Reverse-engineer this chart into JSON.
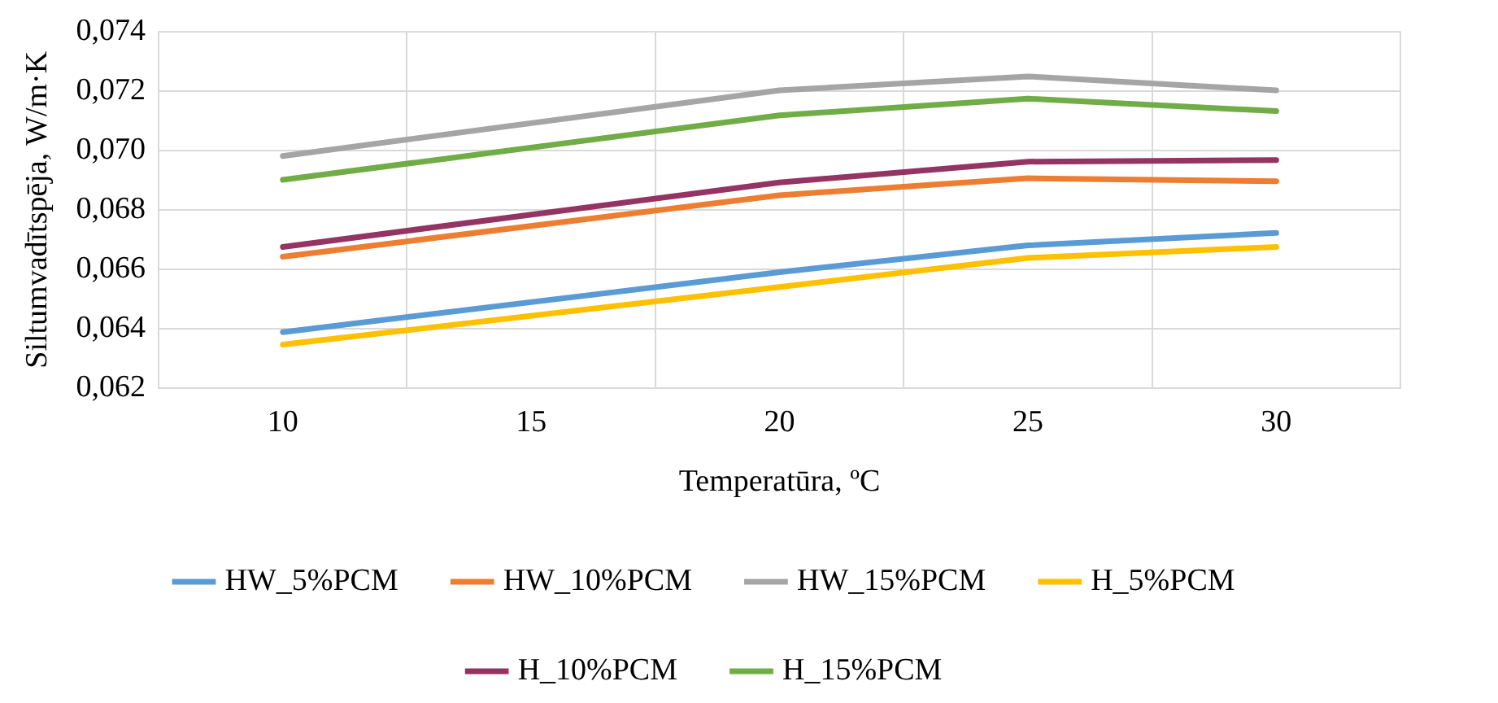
{
  "chart_data": {
    "type": "line",
    "xlabel": "Temperatūra, ºC",
    "ylabel": "Siltumvadītspēja, W/m·K",
    "categories": [
      "10",
      "15",
      "20",
      "25",
      "30"
    ],
    "series": [
      {
        "name": "HW_5%PCM",
        "color": "#5b9bd5",
        "values": [
          0.06388,
          null,
          0.0659,
          0.0668,
          0.06722
        ]
      },
      {
        "name": "HW_10%PCM",
        "color": "#ed7d31",
        "values": [
          0.06642,
          null,
          0.06849,
          0.06906,
          0.06896
        ]
      },
      {
        "name": "HW_15%PCM",
        "color": "#a5a5a5",
        "values": [
          0.06981,
          null,
          0.07202,
          0.07249,
          0.07202
        ]
      },
      {
        "name": "H_5%PCM",
        "color": "#ffc000",
        "values": [
          0.06346,
          null,
          0.0654,
          0.06638,
          0.06675
        ]
      },
      {
        "name": "H_10%PCM",
        "color": "#943463",
        "values": [
          0.06675,
          null,
          0.06892,
          0.06962,
          0.06967
        ]
      },
      {
        "name": "H_15%PCM",
        "color": "#70ad47",
        "values": [
          0.06901,
          null,
          0.07118,
          0.07174,
          0.07132
        ]
      }
    ],
    "ylim": [
      0.062,
      0.074
    ],
    "yticks": [
      {
        "value": 0.062,
        "label": "0,062"
      },
      {
        "value": 0.064,
        "label": "0,064"
      },
      {
        "value": 0.066,
        "label": "0,066"
      },
      {
        "value": 0.068,
        "label": "0,068"
      },
      {
        "value": 0.07,
        "label": "0,070"
      },
      {
        "value": 0.072,
        "label": "0,072"
      },
      {
        "value": 0.074,
        "label": "0,074"
      }
    ],
    "grid": true,
    "legend": "bottom",
    "marker": "none",
    "line_style": "solid"
  }
}
